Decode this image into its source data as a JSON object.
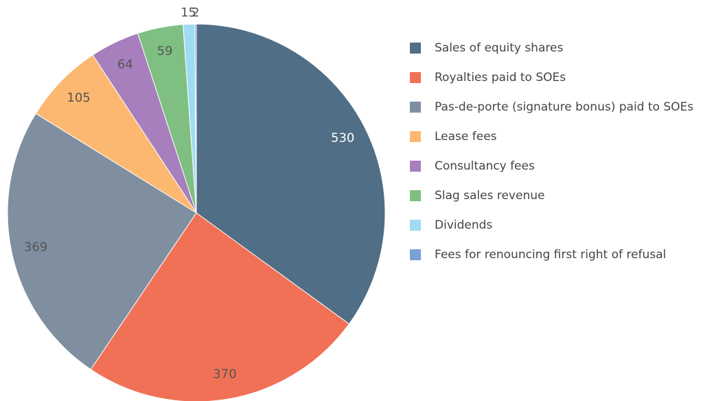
{
  "chart_data": {
    "type": "pie",
    "categories": [
      "Sales of equity shares",
      "Royalties paid to SOEs",
      "Pas-de-porte (signature bonus) paid to SOEs",
      "Lease fees",
      "Consultancy fees",
      "Slag sales revenue",
      "Dividends",
      "Fees for renouncing first right of refusal"
    ],
    "values": [
      530,
      370,
      369,
      105,
      64,
      59,
      15,
      2
    ],
    "colors": [
      "#506e85",
      "#f07156",
      "#7f8fa0",
      "#fcb870",
      "#a77fbd",
      "#7fbf82",
      "#9fdcf3",
      "#7ba0d8"
    ],
    "legend": "right"
  }
}
